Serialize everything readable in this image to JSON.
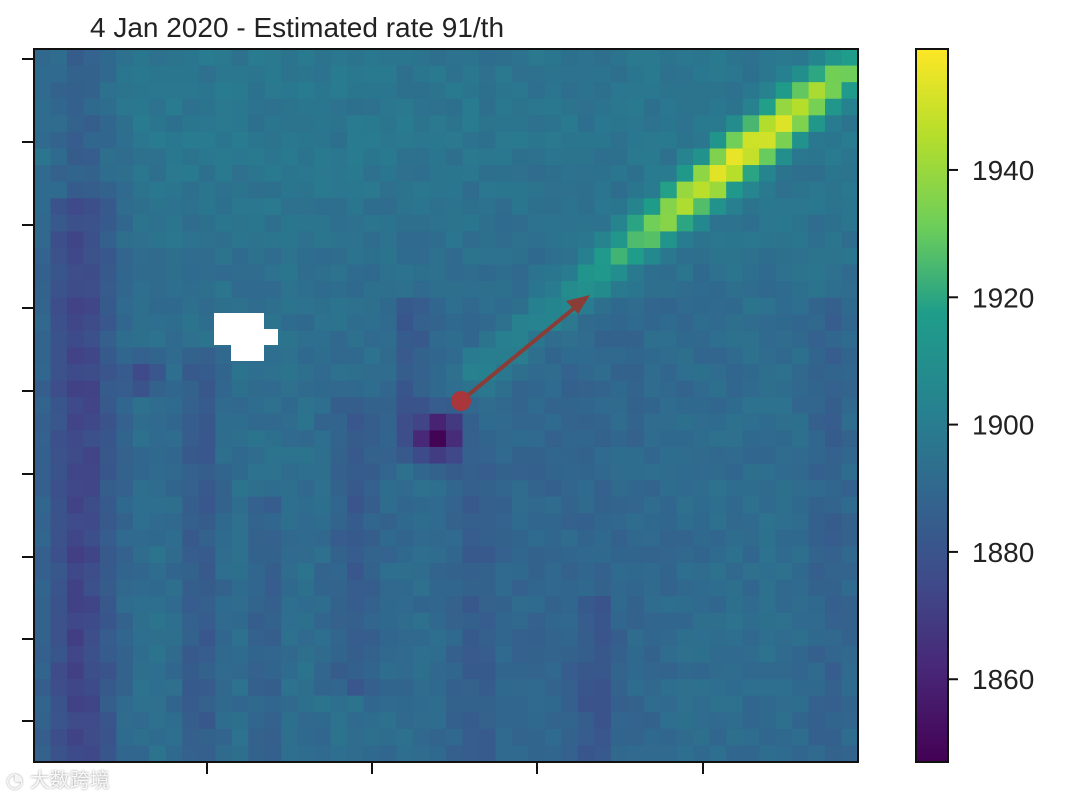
{
  "chart_data": {
    "type": "heatmap",
    "title": "4 Jan 2020 - Estimated rate 91/th",
    "xlabel": "",
    "ylabel": "",
    "colorbar": {
      "ticks": [
        1860,
        1880,
        1900,
        1920,
        1940
      ],
      "tick_labels": [
        "1860",
        "1880",
        "1900",
        "1920",
        "1940"
      ],
      "range": [
        1847,
        1959
      ]
    },
    "grid": false,
    "legend": "none",
    "features": [
      {
        "name": "plume",
        "peak_value": 1955
      },
      {
        "name": "source",
        "value": 1850
      },
      {
        "name": "missing-data",
        "value": null
      }
    ],
    "arrow": {
      "color": "#8a3d36"
    }
  },
  "watermark": {
    "text": "大数跨境",
    "icon": "weibo-logo-icon"
  }
}
